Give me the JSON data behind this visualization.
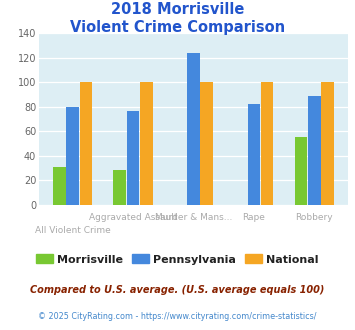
{
  "title_line1": "2018 Morrisville",
  "title_line2": "Violent Crime Comparison",
  "categories": [
    "All Violent Crime",
    "Aggravated Assault",
    "Murder & Mans...",
    "Rape",
    "Robbery"
  ],
  "morrisville": [
    31,
    28,
    0,
    0,
    55
  ],
  "pennsylvania": [
    80,
    76,
    124,
    82,
    89
  ],
  "national": [
    100,
    100,
    100,
    100,
    100
  ],
  "colors": {
    "morrisville": "#78c832",
    "pennsylvania": "#4488dd",
    "national": "#f5a623"
  },
  "ylim": [
    0,
    140
  ],
  "yticks": [
    0,
    20,
    40,
    60,
    80,
    100,
    120,
    140
  ],
  "title_color": "#2255cc",
  "axis_bg": "#ddeef4",
  "legend_labels": [
    "Morrisville",
    "Pennsylvania",
    "National"
  ],
  "footnote1": "Compared to U.S. average. (U.S. average equals 100)",
  "footnote2": "© 2025 CityRating.com - https://www.cityrating.com/crime-statistics/",
  "footnote1_color": "#882200",
  "footnote2_color": "#4488cc",
  "xlabel_color": "#aaaaaa",
  "xtick_row1": [
    "",
    "Aggravated Assault",
    "Murder & Mans...",
    "Rape",
    "Robbery"
  ],
  "xtick_row2": [
    "All Violent Crime",
    "",
    "",
    "",
    ""
  ]
}
